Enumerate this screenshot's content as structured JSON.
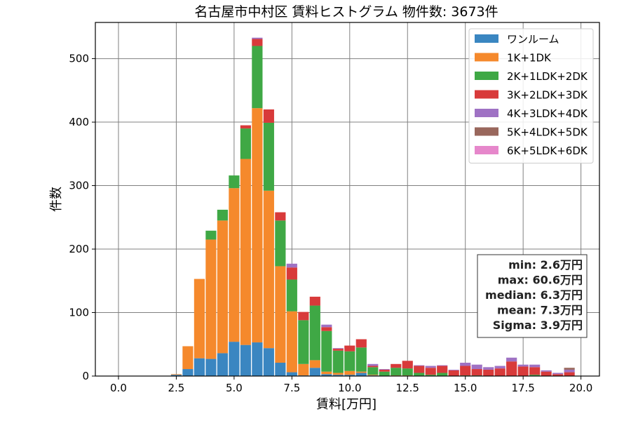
{
  "chart_data": {
    "type": "bar",
    "stacked": true,
    "title": "名古屋市中村区 賃料ヒストグラム  物件数: 3673件",
    "xlabel": "賃料[万円]",
    "ylabel": "件数",
    "xlim": [
      -1.0,
      20.8
    ],
    "ylim": [
      0,
      557
    ],
    "x_ticks": [
      0.0,
      2.5,
      5.0,
      7.5,
      10.0,
      12.5,
      15.0,
      17.5,
      20.0
    ],
    "x_tick_labels": [
      "0.0",
      "2.5",
      "5.0",
      "7.5",
      "10.0",
      "12.5",
      "15.0",
      "17.5",
      "20.0"
    ],
    "y_ticks": [
      0,
      100,
      200,
      300,
      400,
      500
    ],
    "y_tick_labels": [
      "0",
      "100",
      "200",
      "300",
      "400",
      "500"
    ],
    "grid": true,
    "legend_position": "top-right",
    "bin_width": 0.5,
    "x": [
      2.5,
      3.0,
      3.5,
      4.0,
      4.5,
      5.0,
      5.5,
      6.0,
      6.5,
      7.0,
      7.5,
      8.0,
      8.5,
      9.0,
      9.5,
      10.0,
      10.5,
      11.0,
      11.5,
      12.0,
      12.5,
      13.0,
      13.5,
      14.0,
      14.5,
      15.0,
      15.5,
      16.0,
      16.5,
      17.0,
      17.5,
      18.0,
      18.5,
      19.0,
      19.5
    ],
    "series": [
      {
        "name": "ワンルーム",
        "color": "#3a86c1",
        "values": [
          2,
          11,
          28,
          27,
          36,
          54,
          49,
          53,
          44,
          21,
          6,
          1,
          13,
          3,
          2,
          2,
          5,
          1,
          0,
          0,
          0,
          0,
          0,
          0,
          0,
          0,
          0,
          0,
          0,
          0,
          0,
          0,
          0,
          0,
          0
        ]
      },
      {
        "name": "1K+1DK",
        "color": "#f5892c",
        "values": [
          1,
          36,
          125,
          188,
          209,
          242,
          293,
          369,
          248,
          152,
          96,
          18,
          12,
          4,
          3,
          6,
          2,
          1,
          0,
          1,
          1,
          0,
          0,
          0,
          0,
          0,
          0,
          0,
          0,
          0,
          0,
          0,
          0,
          0,
          0
        ]
      },
      {
        "name": "2K+1LDK+2DK",
        "color": "#3fa845",
        "values": [
          0,
          0,
          0,
          14,
          17,
          20,
          48,
          98,
          107,
          72,
          50,
          69,
          86,
          64,
          35,
          31,
          38,
          12,
          7,
          12,
          11,
          5,
          2,
          5,
          0,
          1,
          1,
          0,
          0,
          0,
          0,
          2,
          0,
          0,
          0
        ]
      },
      {
        "name": "3K+2LDK+3DK",
        "color": "#d83a3a",
        "values": [
          0,
          0,
          0,
          0,
          0,
          0,
          5,
          11,
          21,
          13,
          19,
          13,
          14,
          6,
          3,
          9,
          13,
          2,
          3,
          6,
          12,
          11,
          11,
          11,
          9,
          15,
          10,
          10,
          12,
          23,
          15,
          12,
          7,
          3,
          6
        ]
      },
      {
        "name": "4K+3LDK+4DK",
        "color": "#9f72c4",
        "values": [
          0,
          0,
          0,
          0,
          0,
          0,
          0,
          2,
          0,
          0,
          6,
          0,
          0,
          4,
          1,
          0,
          0,
          3,
          1,
          0,
          0,
          1,
          3,
          1,
          1,
          5,
          7,
          4,
          4,
          6,
          3,
          4,
          2,
          2,
          4
        ]
      },
      {
        "name": "5K+4LDK+5DK",
        "color": "#99675c",
        "values": [
          0,
          0,
          0,
          0,
          0,
          0,
          0,
          0,
          0,
          0,
          0,
          0,
          0,
          0,
          0,
          0,
          0,
          0,
          0,
          0,
          0,
          0,
          0,
          0,
          0,
          0,
          0,
          0,
          0,
          0,
          0,
          0,
          0,
          0,
          3
        ]
      },
      {
        "name": "6K+5LDK+6DK",
        "color": "#e687cb",
        "values": [
          0,
          0,
          0,
          0,
          0,
          0,
          0,
          0,
          0,
          0,
          0,
          0,
          0,
          0,
          0,
          0,
          0,
          0,
          0,
          0,
          0,
          0,
          0,
          0,
          0,
          0,
          0,
          0,
          0,
          0,
          0,
          0,
          0,
          0,
          0
        ]
      }
    ],
    "stats": [
      "min: 2.6万円",
      "max: 60.6万円",
      "median: 6.3万円",
      "mean: 7.3万円",
      "Sigma: 3.9万円"
    ]
  }
}
